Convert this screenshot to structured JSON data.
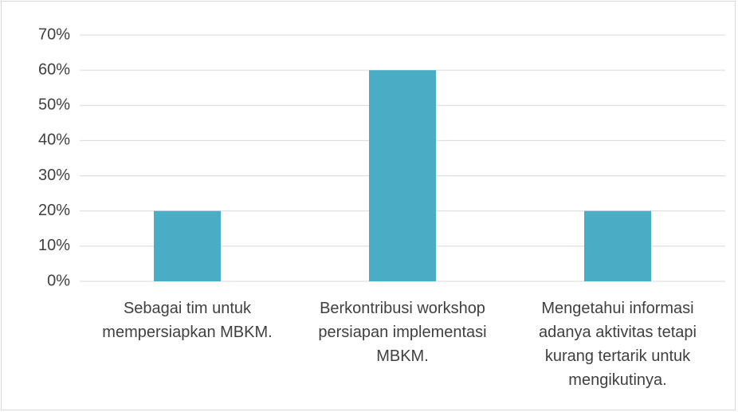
{
  "chart_data": {
    "type": "bar",
    "categories": [
      "Sebagai tim untuk mempersiapkan MBKM.",
      "Berkontribusi workshop  persiapan implementasi MBKM.",
      "Mengetahui informasi adanya aktivitas tetapi kurang tertarik untuk mengikutinya."
    ],
    "values": [
      20,
      60,
      20
    ],
    "color": "#4bacc6",
    "ylim": [
      0,
      70
    ],
    "yticks": [
      {
        "value": 0,
        "label": "0%"
      },
      {
        "value": 10,
        "label": "10%"
      },
      {
        "value": 20,
        "label": "20%"
      },
      {
        "value": 30,
        "label": "30%"
      },
      {
        "value": 40,
        "label": "40%"
      },
      {
        "value": 50,
        "label": "50%"
      },
      {
        "value": 60,
        "label": "60%"
      },
      {
        "value": 70,
        "label": "70%"
      }
    ],
    "grid": true
  }
}
